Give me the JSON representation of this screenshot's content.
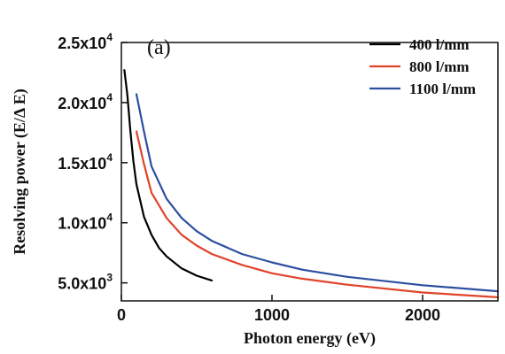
{
  "chart_data": {
    "type": "line",
    "panel_label": "(a)",
    "xlabel": "Photon energy (eV)",
    "ylabel": "Resolving power (E/Δ E)",
    "xlim": [
      0,
      2500
    ],
    "ylim": [
      3500,
      25000
    ],
    "x_ticks": [
      {
        "value": 0,
        "label": "0"
      },
      {
        "value": 1000,
        "label": "1000"
      },
      {
        "value": 2000,
        "label": "2000"
      }
    ],
    "y_ticks": [
      {
        "value": 5000,
        "mantissa": "5.0x10",
        "exponent": "3"
      },
      {
        "value": 10000,
        "mantissa": "1.0x10",
        "exponent": "4"
      },
      {
        "value": 15000,
        "mantissa": "1.5x10",
        "exponent": "4"
      },
      {
        "value": 20000,
        "mantissa": "2.0x10",
        "exponent": "4"
      },
      {
        "value": 25000,
        "mantissa": "2.5x10",
        "exponent": "4"
      }
    ],
    "legend_position": "top-right",
    "grid": false,
    "series": [
      {
        "name": "400 l/mm",
        "color": "#000000",
        "points": [
          [
            20,
            22700
          ],
          [
            40,
            20600
          ],
          [
            60,
            17600
          ],
          [
            80,
            15100
          ],
          [
            100,
            13200
          ],
          [
            150,
            10500
          ],
          [
            200,
            9000
          ],
          [
            250,
            7900
          ],
          [
            300,
            7200
          ],
          [
            400,
            6200
          ],
          [
            500,
            5600
          ],
          [
            600,
            5200
          ]
        ]
      },
      {
        "name": "800 l/mm",
        "color": "#e0442a",
        "points": [
          [
            100,
            17600
          ],
          [
            150,
            14900
          ],
          [
            200,
            12500
          ],
          [
            300,
            10400
          ],
          [
            400,
            9000
          ],
          [
            500,
            8100
          ],
          [
            600,
            7400
          ],
          [
            800,
            6500
          ],
          [
            1000,
            5800
          ],
          [
            1200,
            5350
          ],
          [
            1500,
            4850
          ],
          [
            2000,
            4200
          ],
          [
            2500,
            3800
          ]
        ]
      },
      {
        "name": "1100 l/mm",
        "color": "#2d4fa0",
        "points": [
          [
            100,
            20700
          ],
          [
            150,
            17600
          ],
          [
            200,
            14700
          ],
          [
            300,
            12000
          ],
          [
            400,
            10400
          ],
          [
            500,
            9300
          ],
          [
            600,
            8500
          ],
          [
            800,
            7400
          ],
          [
            1000,
            6700
          ],
          [
            1200,
            6100
          ],
          [
            1500,
            5500
          ],
          [
            2000,
            4800
          ],
          [
            2500,
            4300
          ]
        ]
      }
    ]
  }
}
